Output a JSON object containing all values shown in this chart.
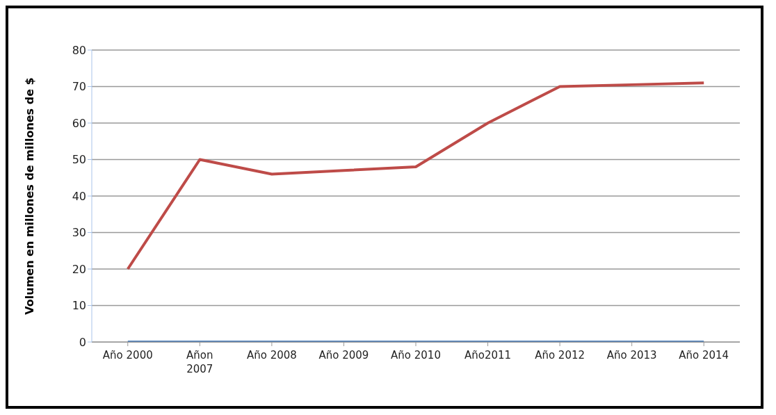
{
  "chart_data": {
    "type": "line",
    "ylabel": "Volumen en millones de millones de $",
    "categories": [
      "Año 2000",
      "Añon 2007",
      "Año 2008",
      "Año 2009",
      "Año 2010",
      "Año2011",
      "Año 2012",
      "Año 2013",
      "Año 2014"
    ],
    "series": [
      {
        "color": "#be4b48",
        "values": [
          20,
          50,
          46,
          47,
          48,
          60,
          70,
          70.5,
          71
        ]
      },
      {
        "color": "#4a7ebb",
        "values": [
          0,
          0,
          0,
          0,
          0,
          0,
          0,
          0,
          0
        ]
      }
    ],
    "ylim": [
      0,
      80
    ],
    "yticks": [
      0,
      10,
      20,
      30,
      40,
      50,
      60,
      70,
      80
    ],
    "grid": "y",
    "legend": false,
    "marker": "none",
    "line_style": "solid"
  }
}
